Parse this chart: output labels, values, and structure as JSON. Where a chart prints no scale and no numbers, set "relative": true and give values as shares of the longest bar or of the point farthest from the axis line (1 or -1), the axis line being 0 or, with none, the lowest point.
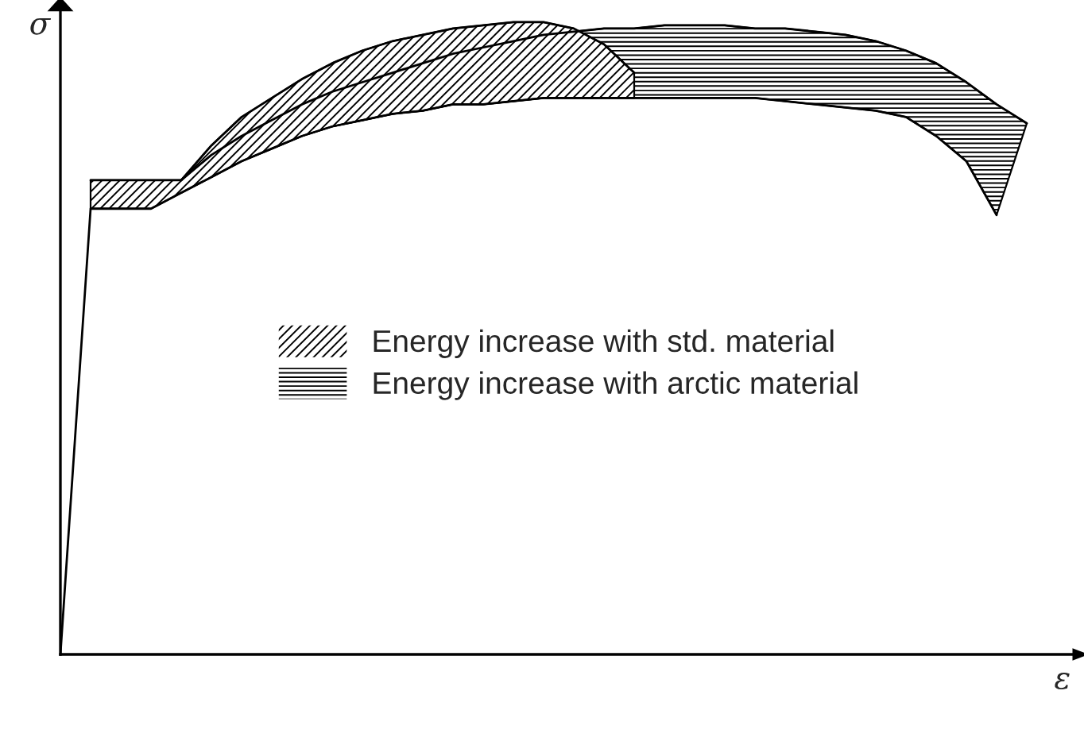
{
  "chart_data": {
    "type": "line",
    "relative": true,
    "xlabel": "ε",
    "ylabel": "σ",
    "legend": "center",
    "marker": "none",
    "line_style": "solid",
    "categories": [
      null,
      null,
      null,
      null,
      null,
      null,
      null,
      null,
      null,
      null,
      null,
      null,
      null,
      null,
      null,
      null,
      null,
      null,
      null,
      null,
      null,
      null,
      null,
      null,
      null,
      null,
      null,
      null,
      null,
      null,
      null,
      null,
      null
    ],
    "series": [
      {
        "color": "#000000",
        "values": [
          0,
          0.705,
          0.705,
          0.705,
          0.73,
          0.755,
          0.78,
          0.8,
          0.82,
          0.835,
          0.845,
          0.855,
          0.86,
          0.87,
          0.87,
          0.875,
          0.88,
          0.88,
          0.88,
          0.88,
          0.88,
          0.88,
          0.88,
          0.88,
          0.875,
          0.87,
          0.865,
          0.86,
          0.85,
          0.82,
          0.78,
          0.695,
          null
        ]
      },
      {
        "type": "area",
        "name": "Energy increase with std. material",
        "color": "#000000",
        "values": [
          null,
          0.75,
          0.75,
          0.75,
          0.75,
          0.805,
          0.85,
          0.88,
          0.91,
          0.935,
          0.955,
          0.97,
          0.98,
          0.99,
          0.995,
          1.0,
          1.0,
          0.99,
          0.965,
          0.92,
          null,
          null,
          null,
          null,
          null,
          null,
          null,
          null,
          null,
          null,
          null,
          null,
          null
        ]
      },
      {
        "type": "area",
        "name": "Energy increase with arctic material",
        "color": "#000000",
        "values": [
          null,
          null,
          null,
          null,
          0.75,
          0.79,
          0.82,
          0.845,
          0.87,
          0.89,
          0.905,
          0.92,
          0.935,
          0.95,
          0.96,
          0.97,
          0.98,
          0.985,
          0.99,
          0.99,
          0.995,
          0.995,
          0.995,
          0.99,
          0.99,
          0.985,
          0.98,
          0.97,
          0.955,
          0.935,
          0.905,
          0.87,
          0.84
        ]
      }
    ]
  }
}
